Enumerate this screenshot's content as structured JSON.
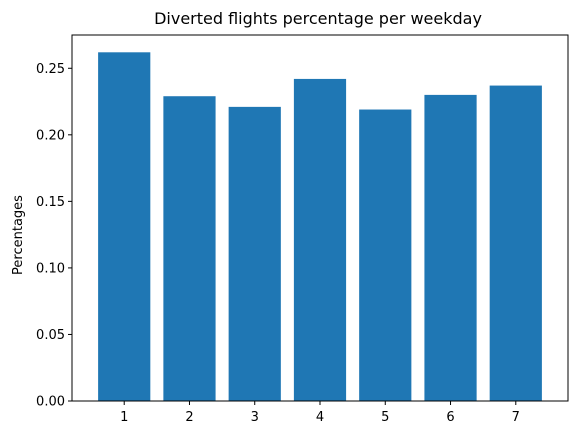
{
  "chart_data": {
    "type": "bar",
    "title": "Diverted flights percentage per weekday",
    "xlabel": "",
    "ylabel": "Percentages",
    "categories": [
      "1",
      "2",
      "3",
      "4",
      "5",
      "6",
      "7"
    ],
    "values": [
      0.262,
      0.229,
      0.221,
      0.242,
      0.219,
      0.23,
      0.237
    ],
    "ylim": [
      0,
      0.275
    ],
    "yticks": [
      0.0,
      0.05,
      0.1,
      0.15,
      0.2,
      0.25
    ],
    "ytick_labels": [
      "0.00",
      "0.05",
      "0.10",
      "0.15",
      "0.20",
      "0.25"
    ],
    "grid": false,
    "bar_color": "#1f77b4"
  }
}
